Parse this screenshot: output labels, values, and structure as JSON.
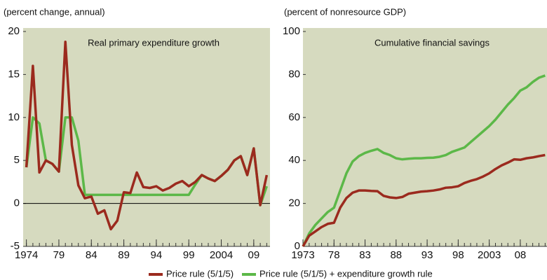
{
  "chart_data": [
    {
      "type": "line",
      "subtitle": "(percent change, annual)",
      "annotation": "Real primary expenditure growth",
      "x": [
        1974,
        1975,
        1976,
        1977,
        1978,
        1979,
        1980,
        1981,
        1982,
        1983,
        1984,
        1985,
        1986,
        1987,
        1988,
        1989,
        1990,
        1991,
        1992,
        1993,
        1994,
        1995,
        1996,
        1997,
        1998,
        1999,
        2000,
        2001,
        2002,
        2003,
        2004,
        2005,
        2006,
        2007,
        2008,
        2009,
        2010,
        2011
      ],
      "series": [
        {
          "name": "Price rule (5/1/5) + expenditure growth rule",
          "color": "#5cb848",
          "values": [
            4.2,
            10,
            9.3,
            5,
            4.6,
            3.7,
            10,
            10,
            7.3,
            1,
            1,
            1,
            1,
            1,
            1,
            1,
            1,
            1,
            1,
            1,
            1,
            1,
            1,
            1,
            1,
            1,
            2.2,
            3.3,
            2.9,
            2.6,
            3.2,
            3.9,
            5.0,
            5.5,
            3.3,
            6.4,
            -0.2,
            2.0
          ]
        },
        {
          "name": "Price rule (5/1/5)",
          "color": "#9b2a1e",
          "values": [
            4.2,
            16,
            3.6,
            5,
            4.6,
            3.7,
            18.8,
            6.8,
            2.1,
            0.6,
            0.8,
            -1.2,
            -0.8,
            -3.0,
            -2.0,
            1.3,
            1.2,
            3.6,
            1.9,
            1.8,
            2.0,
            1.5,
            1.8,
            2.3,
            2.6,
            2.0,
            2.5,
            3.3,
            2.9,
            2.6,
            3.2,
            3.9,
            5.0,
            5.5,
            3.3,
            6.4,
            -0.2,
            3.3
          ]
        }
      ],
      "xlim": [
        1973.5,
        2011.5
      ],
      "ylim": [
        -5,
        20
      ],
      "reference_line": 0,
      "xticks": [
        1974,
        {
          "value": 1979,
          "label": "79"
        },
        {
          "value": 1984,
          "label": "84"
        },
        {
          "value": 1989,
          "label": "89"
        },
        {
          "value": 1994,
          "label": "94"
        },
        {
          "value": 1999,
          "label": "99"
        },
        2004,
        {
          "value": 2009,
          "label": "09"
        }
      ],
      "yticks": [
        -5,
        0,
        5,
        10,
        15,
        20
      ]
    },
    {
      "type": "line",
      "subtitle": "(percent of nonresource GDP)",
      "annotation": "Cumulative financial savings",
      "x": [
        1973,
        1974,
        1975,
        1976,
        1977,
        1978,
        1979,
        1980,
        1981,
        1982,
        1983,
        1984,
        1985,
        1986,
        1987,
        1988,
        1989,
        1990,
        1991,
        1992,
        1993,
        1994,
        1995,
        1996,
        1997,
        1998,
        1999,
        2000,
        2001,
        2002,
        2003,
        2004,
        2005,
        2006,
        2007,
        2008,
        2009,
        2010,
        2011,
        2012
      ],
      "series": [
        {
          "name": "Price rule (5/1/5) + expenditure growth rule",
          "color": "#5cb848",
          "values": [
            0,
            6,
            10,
            13,
            16,
            18,
            26,
            34,
            39.5,
            42,
            43.5,
            44.5,
            45.3,
            43.5,
            42.5,
            41,
            40.5,
            40.8,
            41,
            41,
            41.2,
            41.3,
            41.7,
            42.5,
            44,
            45,
            46,
            48.5,
            51,
            53.5,
            56,
            59,
            62.5,
            66,
            69,
            72.5,
            74,
            76.5,
            78.5,
            79.5
          ]
        },
        {
          "name": "Price rule (5/1/5)",
          "color": "#9b2a1e",
          "values": [
            0,
            5,
            7,
            9,
            10.5,
            11,
            18,
            22.5,
            25,
            26,
            26,
            25.8,
            25.7,
            23.5,
            22.8,
            22.5,
            23,
            24.5,
            25,
            25.5,
            25.7,
            26,
            26.5,
            27.3,
            27.5,
            28,
            29.5,
            30.5,
            31.3,
            32.5,
            34,
            36,
            37.7,
            39,
            40.5,
            40.3,
            41,
            41.4,
            42,
            42.5
          ]
        }
      ],
      "xlim": [
        1973,
        2012.3
      ],
      "ylim": [
        0,
        100
      ],
      "xticks": [
        1973,
        {
          "value": 1978,
          "label": "78"
        },
        {
          "value": 1983,
          "label": "83"
        },
        {
          "value": 1988,
          "label": "88"
        },
        {
          "value": 1993,
          "label": "93"
        },
        {
          "value": 1998,
          "label": "98"
        },
        2003,
        {
          "value": 2008,
          "label": "08"
        }
      ],
      "yticks": [
        0,
        20,
        40,
        60,
        80,
        100
      ]
    }
  ]
}
